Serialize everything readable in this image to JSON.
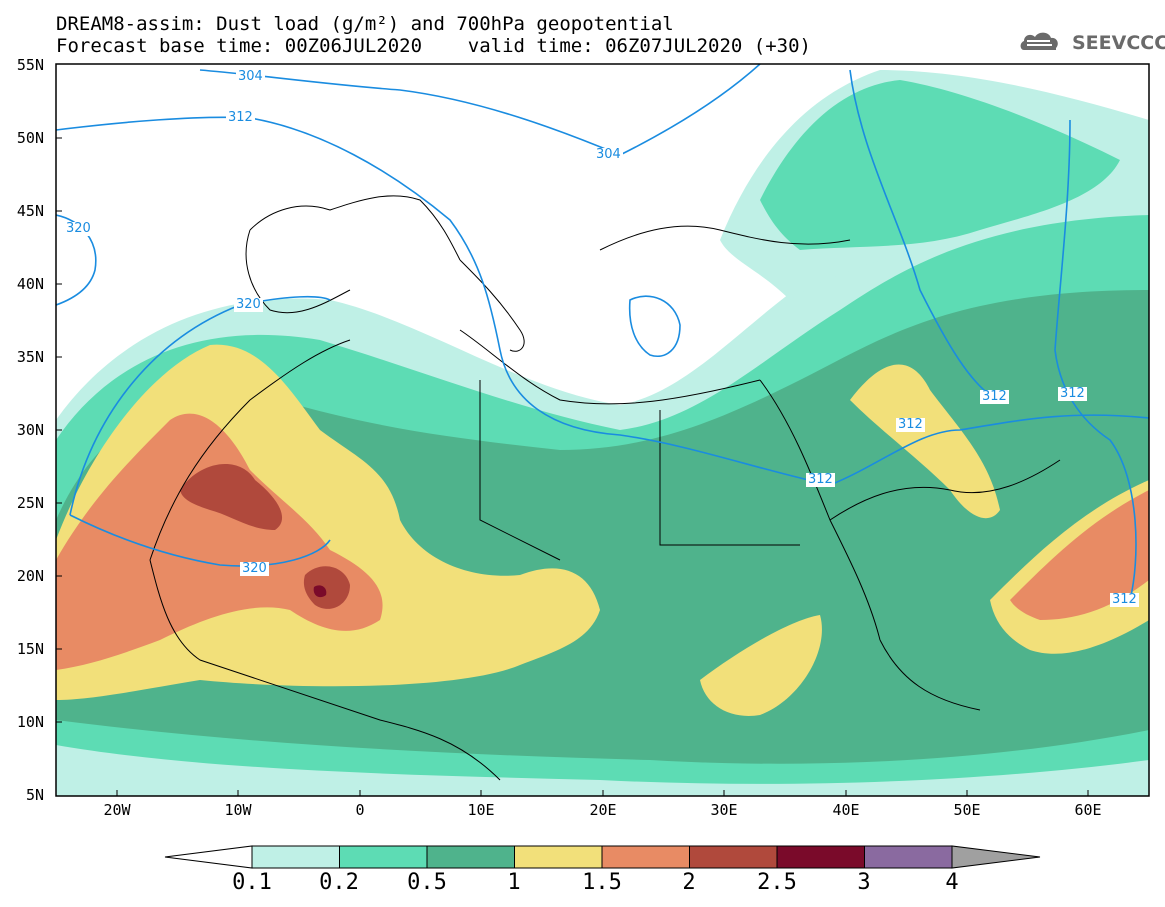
{
  "title": {
    "line1": "DREAM8-assim: Dust load (g/m²) and 700hPa geopotential",
    "line2": "Forecast base time: 00Z06JUL2020    valid time: 06Z07JUL2020 (+30)"
  },
  "logo": {
    "text": "SEEVCCC",
    "icon": "cloud-logo-icon"
  },
  "axes": {
    "lat_labels": [
      "55N",
      "50N",
      "45N",
      "40N",
      "35N",
      "30N",
      "25N",
      "20N",
      "15N",
      "10N",
      "5N"
    ],
    "lon_labels": [
      "20W",
      "10W",
      "0",
      "10E",
      "20E",
      "30E",
      "40E",
      "50E",
      "60E"
    ]
  },
  "colorbar": {
    "ticks": [
      "0.1",
      "0.2",
      "0.5",
      "1",
      "1.5",
      "2",
      "2.5",
      "3",
      "4"
    ],
    "colors": [
      "#bff0e6",
      "#5ddcb4",
      "#4fb38c",
      "#f2e07a",
      "#e88b64",
      "#b0493c",
      "#7a0a2a",
      "#8a6aa0",
      "#a0a0a0"
    ]
  },
  "contours": {
    "color": "#1a8ce0",
    "labels": [
      "304",
      "312",
      "304",
      "320",
      "320",
      "320",
      "312",
      "312",
      "312",
      "312",
      "312"
    ]
  }
}
